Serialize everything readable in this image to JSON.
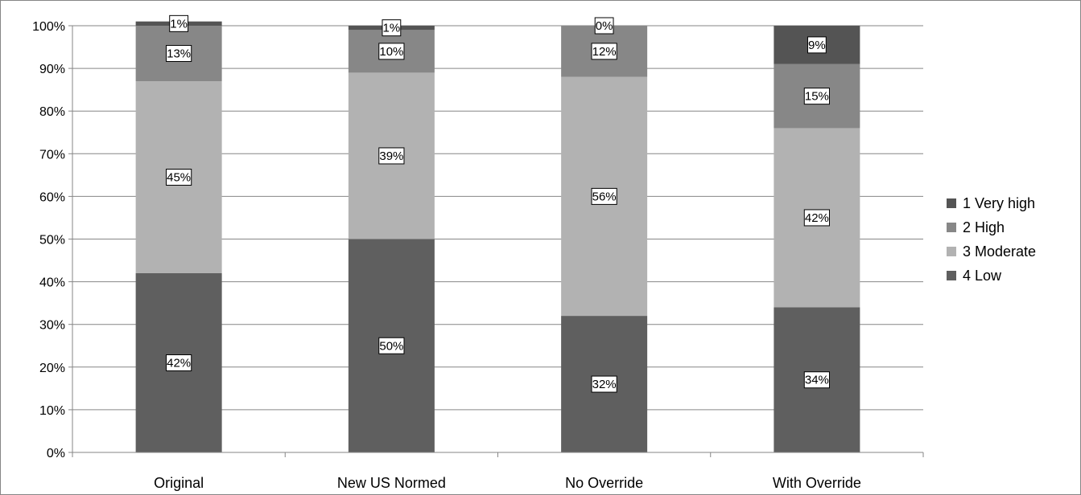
{
  "chart_data": {
    "type": "bar",
    "stacked": true,
    "percent_stacked": true,
    "categories": [
      "Original",
      "New US Normed",
      "No Override",
      "With Override"
    ],
    "series": [
      {
        "name": "4 Low",
        "values": [
          42,
          50,
          32,
          34
        ],
        "labels": [
          "42%",
          "50%",
          "32%",
          "34%"
        ],
        "color": "#5f5f5f"
      },
      {
        "name": "3 Moderate",
        "values": [
          45,
          39,
          56,
          42
        ],
        "labels": [
          "45%",
          "39%",
          "56%",
          "42%"
        ],
        "color": "#b2b2b2"
      },
      {
        "name": "2 High",
        "values": [
          13,
          10,
          12,
          15
        ],
        "labels": [
          "13%",
          "10%",
          "12%",
          "15%"
        ],
        "color": "#878787"
      },
      {
        "name": "1 Very high",
        "values": [
          1,
          1,
          0,
          9
        ],
        "labels": [
          "1%",
          "1%",
          "0%",
          "9%"
        ],
        "color": "#545454"
      }
    ],
    "legend_order": [
      "1 Very high",
      "2 High",
      "3 Moderate",
      "4 Low"
    ],
    "y_ticks": [
      "0%",
      "10%",
      "20%",
      "30%",
      "40%",
      "50%",
      "60%",
      "70%",
      "80%",
      "90%",
      "100%"
    ],
    "ylim": [
      0,
      100
    ],
    "grid": true,
    "legend_position": "right",
    "title": "",
    "xlabel": "",
    "ylabel": ""
  }
}
